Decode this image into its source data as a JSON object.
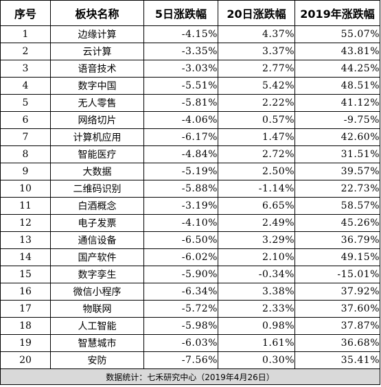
{
  "headers": [
    "序号",
    "板块名称",
    "5日涨跌幅",
    "20日涨跌幅",
    "2019年涨跌幅"
  ],
  "rows": [
    {
      "rank": "1",
      "name": "边缘计算",
      "d5": "-4.15%",
      "d20": "4.37%",
      "y2019": "55.07%"
    },
    {
      "rank": "2",
      "name": "云计算",
      "d5": "-3.35%",
      "d20": "3.37%",
      "y2019": "43.81%"
    },
    {
      "rank": "3",
      "name": "语音技术",
      "d5": "-3.03%",
      "d20": "2.77%",
      "y2019": "44.25%"
    },
    {
      "rank": "4",
      "name": "数字中国",
      "d5": "-5.51%",
      "d20": "5.42%",
      "y2019": "48.51%"
    },
    {
      "rank": "5",
      "name": "无人零售",
      "d5": "-5.81%",
      "d20": "2.22%",
      "y2019": "41.12%"
    },
    {
      "rank": "6",
      "name": "网络切片",
      "d5": "-4.06%",
      "d20": "0.57%",
      "y2019": "-9.75%"
    },
    {
      "rank": "7",
      "name": "计算机应用",
      "d5": "-6.17%",
      "d20": "1.47%",
      "y2019": "42.60%"
    },
    {
      "rank": "8",
      "name": "智能医疗",
      "d5": "-4.84%",
      "d20": "2.72%",
      "y2019": "31.51%"
    },
    {
      "rank": "9",
      "name": "大数据",
      "d5": "-5.19%",
      "d20": "2.50%",
      "y2019": "39.57%"
    },
    {
      "rank": "10",
      "name": "二维码识别",
      "d5": "-5.88%",
      "d20": "-1.14%",
      "y2019": "22.73%"
    },
    {
      "rank": "11",
      "name": "白酒概念",
      "d5": "-3.19%",
      "d20": "6.65%",
      "y2019": "58.57%"
    },
    {
      "rank": "12",
      "name": "电子发票",
      "d5": "-4.10%",
      "d20": "2.49%",
      "y2019": "45.26%"
    },
    {
      "rank": "13",
      "name": "通信设备",
      "d5": "-6.50%",
      "d20": "3.29%",
      "y2019": "36.79%"
    },
    {
      "rank": "14",
      "name": "国产软件",
      "d5": "-6.02%",
      "d20": "2.10%",
      "y2019": "49.15%"
    },
    {
      "rank": "15",
      "name": "数字孪生",
      "d5": "-5.90%",
      "d20": "-0.34%",
      "y2019": "-15.01%"
    },
    {
      "rank": "16",
      "name": "微信小程序",
      "d5": "-6.34%",
      "d20": "3.38%",
      "y2019": "37.92%"
    },
    {
      "rank": "17",
      "name": "物联网",
      "d5": "-5.72%",
      "d20": "2.33%",
      "y2019": "37.60%"
    },
    {
      "rank": "18",
      "name": "人工智能",
      "d5": "-5.98%",
      "d20": "0.98%",
      "y2019": "37.87%"
    },
    {
      "rank": "19",
      "name": "智慧城市",
      "d5": "-6.03%",
      "d20": "1.61%",
      "y2019": "36.68%"
    },
    {
      "rank": "20",
      "name": "安防",
      "d5": "-7.56%",
      "d20": "0.30%",
      "y2019": "35.41%"
    }
  ],
  "footer": "数据统计：七禾研究中心（2019年4月26日）"
}
